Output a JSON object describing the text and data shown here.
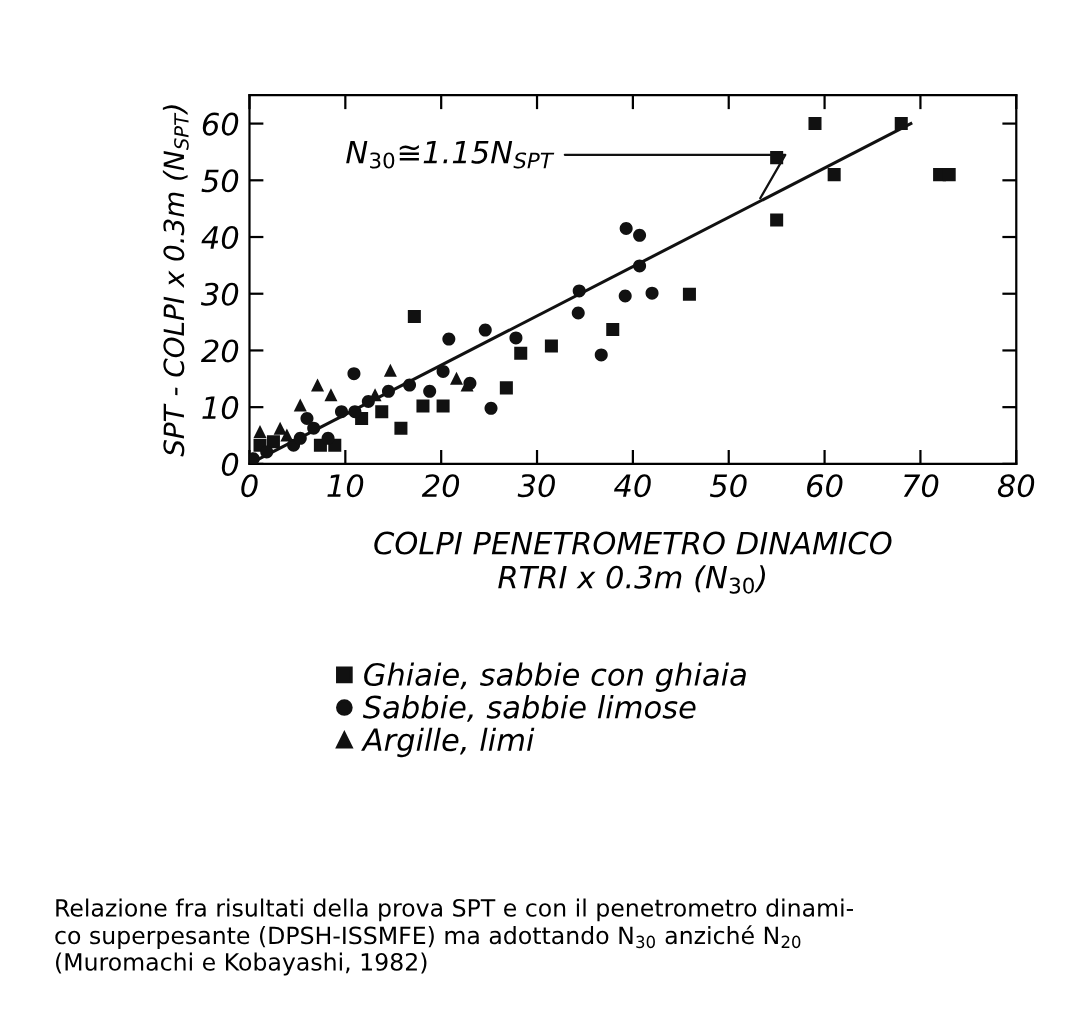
{
  "chart_data": {
    "type": "scatter",
    "xlabel": "COLPI PENETROMETRO DINAMICO\nRTRI x 0.3m (N$_{30}$)",
    "ylabel": "SPT - COLPI x 0.3m (N$_{SPT}$)",
    "xlim": [
      0,
      80
    ],
    "xticks": [
      0,
      10,
      20,
      30,
      40,
      50,
      60,
      70,
      80
    ],
    "ylim": [
      0,
      65
    ],
    "yticks": [
      0,
      10,
      20,
      30,
      40,
      50,
      60
    ],
    "grid": false,
    "legend": "bottom",
    "series": [
      {
        "name": "Ghiaie, sabbie con ghiaia",
        "color": "#111111",
        "marker": "square",
        "x": [
          17.2,
          45.9,
          37.9,
          31.5,
          28.3,
          26.8,
          15.8,
          55,
          55,
          59,
          61,
          68,
          72,
          73,
          1.1,
          2.5,
          7.4,
          8.9,
          11.7,
          13.8,
          18.1,
          20.2
        ],
        "values": [
          26,
          29.9,
          23.7,
          20.8,
          19.5,
          13.4,
          6.3,
          43,
          54,
          60,
          51,
          60,
          51,
          51,
          3.3,
          3.9,
          3.3,
          3.3,
          8,
          9.2,
          10.2,
          10.2
        ]
      },
      {
        "name": "Sabbie, sabbie limose",
        "color": "#111111",
        "marker": "circle",
        "x": [
          20.8,
          24.6,
          10.9,
          20.2,
          23,
          25.2,
          39.3,
          40.7,
          40.7,
          34.4,
          34.3,
          39.2,
          42,
          36.7,
          27.8,
          0.4,
          1.8,
          4.6,
          5.3,
          6.7,
          8.2,
          9.6,
          11,
          12.4,
          6,
          14.5,
          16.7,
          18.8
        ],
        "values": [
          22,
          23.6,
          15.9,
          16.3,
          14.2,
          9.8,
          41.5,
          40.3,
          34.9,
          30.5,
          26.6,
          29.6,
          30.1,
          19.2,
          22.2,
          0.9,
          2.1,
          3.3,
          4.5,
          6.3,
          4.5,
          9.2,
          9.2,
          11,
          8,
          12.8,
          13.9,
          12.8
        ]
      },
      {
        "name": "Argille, limi",
        "color": "#111111",
        "marker": "triangle",
        "x": [
          14.7,
          5.3,
          7.1,
          8.5,
          13.1,
          3.2,
          1.1,
          3.9,
          21.6,
          22.7
        ],
        "values": [
          16.5,
          10.4,
          13.9,
          12.2,
          12.2,
          6.3,
          5.7,
          5.1,
          15.1,
          13.9
        ]
      },
      {
        "type": "line",
        "color": "#111111",
        "line_style": "solid",
        "x": [
          0,
          69
        ],
        "values": [
          0,
          60
        ]
      }
    ],
    "annotations": [
      {
        "text": "N$_{30}$≅1.15N$_{SPT}$",
        "x": 53,
        "y": 46
      },
      "Relazione fra risultati della prova SPT e con il penetrometro dinami-\nco superpesante (DPSH-ISSMFE) ma adottando N$_{30}$ anziché N$_{20}$\n(Muromachi e Kobayashi, 1982)"
    ]
  }
}
